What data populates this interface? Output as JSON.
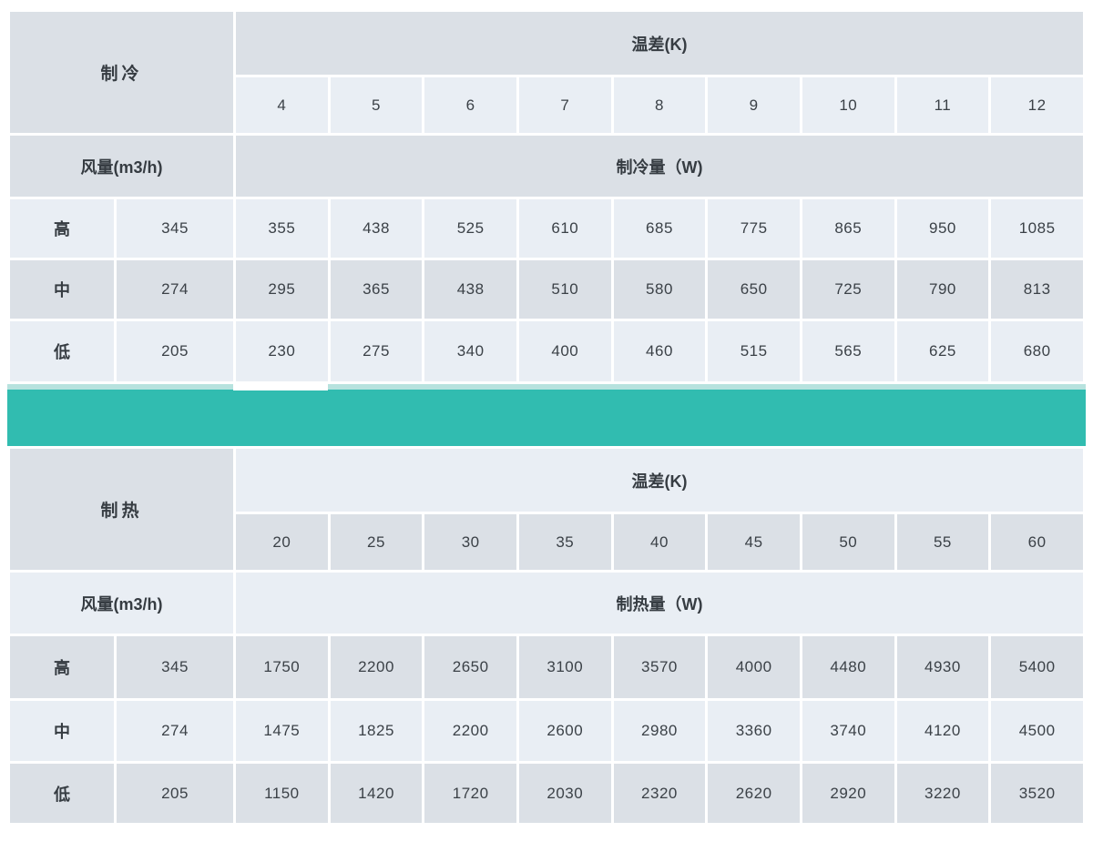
{
  "colors": {
    "cell_dark": "#dbe0e6",
    "cell_light": "#e9eef4",
    "divider_teal": "#31bcb0",
    "divider_teal_light": "#b7e2de",
    "text": "#3a4046"
  },
  "cooling": {
    "section_label": "制冷",
    "temp_diff_header": "温差(K)",
    "temp_diffs": [
      "4",
      "5",
      "6",
      "7",
      "8",
      "9",
      "10",
      "11",
      "12"
    ],
    "airflow_label": "风量(m3/h)",
    "capacity_label": "制冷量（W)",
    "rows": [
      {
        "speed": "高",
        "airflow": "345",
        "values": [
          "355",
          "438",
          "525",
          "610",
          "685",
          "775",
          "865",
          "950",
          "1085"
        ]
      },
      {
        "speed": "中",
        "airflow": "274",
        "values": [
          "295",
          "365",
          "438",
          "510",
          "580",
          "650",
          "725",
          "790",
          "813"
        ]
      },
      {
        "speed": "低",
        "airflow": "205",
        "values": [
          "230",
          "275",
          "340",
          "400",
          "460",
          "515",
          "565",
          "625",
          "680"
        ]
      }
    ],
    "row_shades": [
      "light",
      "dark",
      "light"
    ],
    "temp_values_shade": "light"
  },
  "heating": {
    "section_label": "制热",
    "temp_diff_header": "温差(K)",
    "temp_diffs": [
      "20",
      "25",
      "30",
      "35",
      "40",
      "45",
      "50",
      "55",
      "60"
    ],
    "airflow_label": "风量(m3/h)",
    "capacity_label": "制热量（W)",
    "rows": [
      {
        "speed": "高",
        "airflow": "345",
        "values": [
          "1750",
          "2200",
          "2650",
          "3100",
          "3570",
          "4000",
          "4480",
          "4930",
          "5400"
        ]
      },
      {
        "speed": "中",
        "airflow": "274",
        "values": [
          "1475",
          "1825",
          "2200",
          "2600",
          "2980",
          "3360",
          "3740",
          "4120",
          "4500"
        ]
      },
      {
        "speed": "低",
        "airflow": "205",
        "values": [
          "1150",
          "1420",
          "1720",
          "2030",
          "2320",
          "2620",
          "2920",
          "3220",
          "3520"
        ]
      }
    ],
    "row_shades": [
      "dark",
      "light",
      "dark"
    ],
    "temp_values_shade": "dark"
  }
}
